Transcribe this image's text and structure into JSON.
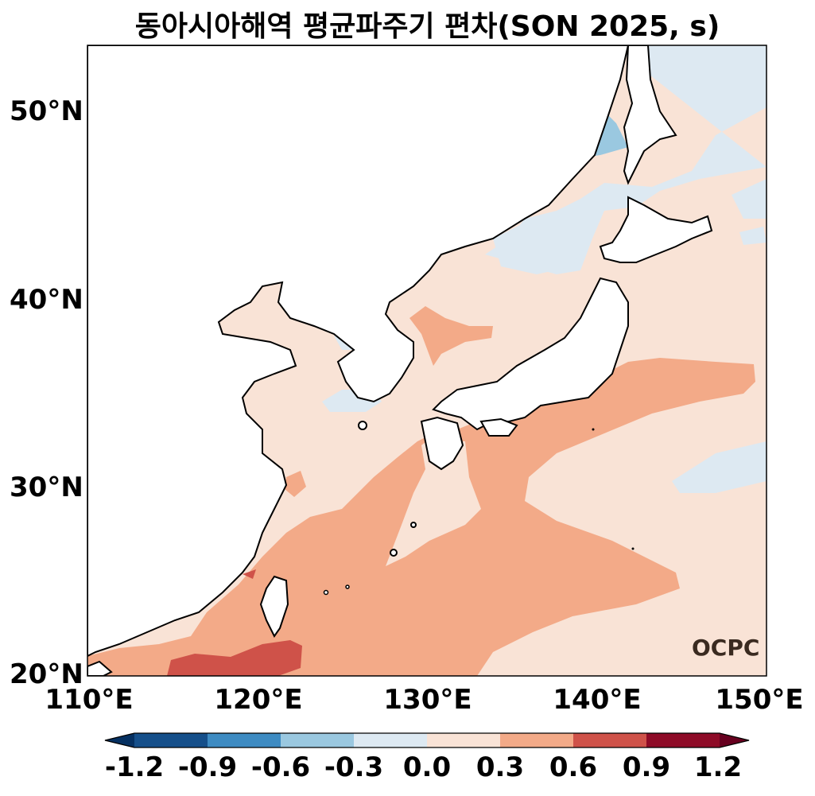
{
  "title": "동아시아해역 평균파주기 편차(SON 2025, s)",
  "map": {
    "lat_labels": [
      "50°N",
      "40°N",
      "30°N",
      "20°N"
    ],
    "lon_labels": [
      "110°E",
      "120°E",
      "130°E",
      "140°E",
      "150°E"
    ],
    "extent": {
      "lon": [
        110,
        150
      ],
      "lat": [
        20,
        53.5
      ]
    },
    "watermark": "OCPC"
  },
  "colorbar": {
    "ticks": [
      "-1.2",
      "-0.9",
      "-0.6",
      "-0.3",
      "0.0",
      "0.3",
      "0.6",
      "0.9",
      "1.2"
    ],
    "colors": {
      "under": "#053061",
      "b1": "#154f8a",
      "b2": "#3d8bc2",
      "b3": "#9ac8e0",
      "b4": "#dde9f2",
      "b5": "#f9e3d6",
      "b6": "#f3aa88",
      "b7": "#cf5249",
      "b8": "#8e0b27",
      "over": "#67001f"
    }
  }
}
